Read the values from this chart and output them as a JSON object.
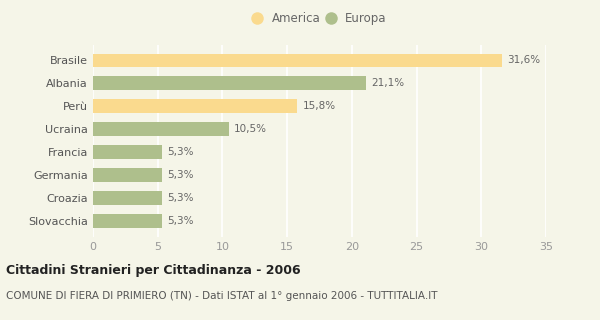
{
  "categories": [
    "Brasile",
    "Albania",
    "Perù",
    "Ucraina",
    "Francia",
    "Germania",
    "Croazia",
    "Slovacchia"
  ],
  "values": [
    31.6,
    21.1,
    15.8,
    10.5,
    5.3,
    5.3,
    5.3,
    5.3
  ],
  "labels": [
    "31,6%",
    "21,1%",
    "15,8%",
    "10,5%",
    "5,3%",
    "5,3%",
    "5,3%",
    "5,3%"
  ],
  "colors": [
    "#FADA8E",
    "#AEBF8C",
    "#FADA8E",
    "#AEBF8C",
    "#AEBF8C",
    "#AEBF8C",
    "#AEBF8C",
    "#AEBF8C"
  ],
  "legend_labels": [
    "America",
    "Europa"
  ],
  "legend_colors": [
    "#FADA8E",
    "#AEBF8C"
  ],
  "xlim": [
    0,
    35
  ],
  "xticks": [
    0,
    5,
    10,
    15,
    20,
    25,
    30,
    35
  ],
  "title": "Cittadini Stranieri per Cittadinanza - 2006",
  "subtitle": "COMUNE DI FIERA DI PRIMIERO (TN) - Dati ISTAT al 1° gennaio 2006 - TUTTITALIA.IT",
  "background_color": "#F5F5E8",
  "grid_color": "#FFFFFF",
  "bar_height": 0.6,
  "title_fontsize": 9,
  "subtitle_fontsize": 7.5,
  "ytick_fontsize": 8,
  "xtick_fontsize": 8,
  "label_fontsize": 7.5,
  "legend_fontsize": 8.5
}
